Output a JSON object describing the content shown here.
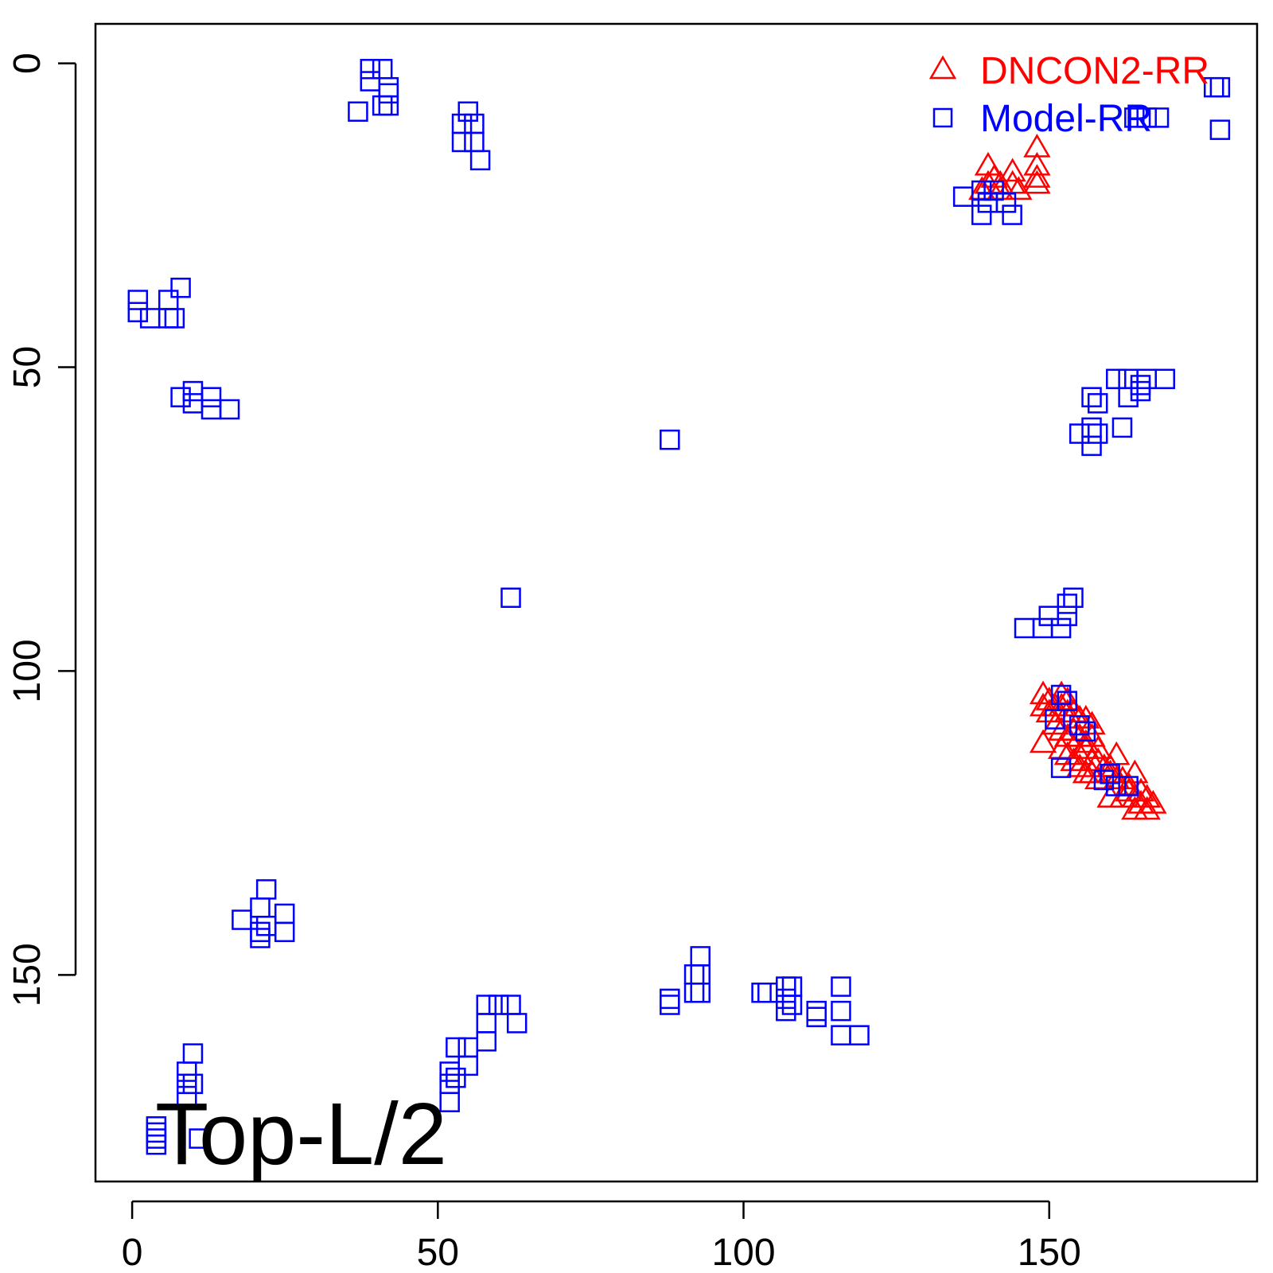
{
  "chart_data": {
    "type": "scatter",
    "title": "",
    "xlabel": "",
    "ylabel": "",
    "xlim": [
      -6,
      184
    ],
    "ylim": [
      -6.5,
      184
    ],
    "y_reversed": true,
    "x_ticks": [
      "0",
      "50",
      "100",
      "150"
    ],
    "y_ticks": [
      "0",
      "50",
      "100",
      "150"
    ],
    "annotation": "Top-L/2",
    "legend": {
      "placement": "top-right",
      "entries": [
        {
          "label": "DNCON2-RR",
          "color": "#ff0000",
          "marker": "triangle"
        },
        {
          "label": "Model-RR",
          "color": "#0000ff",
          "marker": "square"
        }
      ]
    },
    "series": [
      {
        "name": "DNCON2-RR",
        "color": "#ff0000",
        "marker": "triangle",
        "points": [
          [
            140,
            17
          ],
          [
            141,
            19
          ],
          [
            140,
            20
          ],
          [
            142,
            20
          ],
          [
            144,
            18
          ],
          [
            144,
            20
          ],
          [
            148,
            14
          ],
          [
            148,
            17
          ],
          [
            148,
            19
          ],
          [
            148,
            20
          ],
          [
            142,
            21
          ],
          [
            145,
            21
          ],
          [
            139,
            21
          ],
          [
            149,
            104
          ],
          [
            150,
            105
          ],
          [
            149,
            106
          ],
          [
            150,
            107
          ],
          [
            152,
            104
          ],
          [
            153,
            105
          ],
          [
            151,
            106
          ],
          [
            152,
            106
          ],
          [
            153,
            107
          ],
          [
            154,
            107
          ],
          [
            155,
            108
          ],
          [
            156,
            108
          ],
          [
            157,
            109
          ],
          [
            151,
            109
          ],
          [
            152,
            110
          ],
          [
            153,
            111
          ],
          [
            154,
            110
          ],
          [
            155,
            111
          ],
          [
            156,
            112
          ],
          [
            157,
            111
          ],
          [
            158,
            113
          ],
          [
            156,
            113
          ],
          [
            155,
            114
          ],
          [
            157,
            115
          ],
          [
            158,
            115
          ],
          [
            159,
            116
          ],
          [
            160,
            116
          ],
          [
            161,
            114
          ],
          [
            160,
            117
          ],
          [
            161,
            118
          ],
          [
            162,
            118
          ],
          [
            163,
            119
          ],
          [
            164,
            117
          ],
          [
            163,
            120
          ],
          [
            164,
            121
          ],
          [
            165,
            120
          ],
          [
            166,
            121
          ],
          [
            167,
            122
          ],
          [
            165,
            122
          ],
          [
            164,
            123
          ],
          [
            149,
            112
          ],
          [
            152,
            113
          ],
          [
            153,
            114
          ],
          [
            154,
            115
          ],
          [
            155,
            116
          ],
          [
            156,
            117
          ],
          [
            157,
            117
          ],
          [
            158,
            118
          ],
          [
            160,
            121
          ],
          [
            162,
            121
          ],
          [
            166,
            123
          ]
        ]
      },
      {
        "name": "Model-RR",
        "color": "#0000ff",
        "marker": "square",
        "points": [
          [
            39,
            1
          ],
          [
            41,
            1
          ],
          [
            39,
            3
          ],
          [
            42,
            4
          ],
          [
            42,
            5
          ],
          [
            37,
            8
          ],
          [
            42,
            7
          ],
          [
            41,
            7
          ],
          [
            55,
            8
          ],
          [
            54,
            10
          ],
          [
            56,
            10
          ],
          [
            54,
            13
          ],
          [
            56,
            13
          ],
          [
            57,
            16
          ],
          [
            177,
            4
          ],
          [
            178,
            4
          ],
          [
            164,
            9
          ],
          [
            166,
            9
          ],
          [
            168,
            9
          ],
          [
            178,
            11
          ],
          [
            136,
            22
          ],
          [
            139,
            21
          ],
          [
            141,
            21
          ],
          [
            140,
            23
          ],
          [
            143,
            23
          ],
          [
            139,
            25
          ],
          [
            144,
            25
          ],
          [
            1,
            39
          ],
          [
            1,
            41
          ],
          [
            3,
            42
          ],
          [
            6,
            39
          ],
          [
            6,
            42
          ],
          [
            8,
            37
          ],
          [
            7,
            42
          ],
          [
            8,
            55
          ],
          [
            10,
            54
          ],
          [
            10,
            56
          ],
          [
            13,
            55
          ],
          [
            13,
            57
          ],
          [
            16,
            57
          ],
          [
            88,
            62
          ],
          [
            157,
            55
          ],
          [
            158,
            56
          ],
          [
            161,
            52
          ],
          [
            163,
            52
          ],
          [
            163,
            55
          ],
          [
            166,
            52
          ],
          [
            169,
            52
          ],
          [
            165,
            54
          ],
          [
            157,
            60
          ],
          [
            155,
            61
          ],
          [
            158,
            61
          ],
          [
            157,
            63
          ],
          [
            162,
            60
          ],
          [
            165,
            53
          ],
          [
            62,
            88
          ],
          [
            146,
            93
          ],
          [
            149,
            93
          ],
          [
            150,
            91
          ],
          [
            152,
            93
          ],
          [
            153,
            89
          ],
          [
            154,
            88
          ],
          [
            153,
            91
          ],
          [
            152,
            104
          ],
          [
            153,
            105
          ],
          [
            151,
            108
          ],
          [
            155,
            109
          ],
          [
            156,
            110
          ],
          [
            152,
            116
          ],
          [
            159,
            118
          ],
          [
            160,
            117
          ],
          [
            161,
            119
          ],
          [
            163,
            119
          ],
          [
            21,
            139
          ],
          [
            22,
            136
          ],
          [
            18,
            141
          ],
          [
            21,
            143
          ],
          [
            22,
            142
          ],
          [
            25,
            140
          ],
          [
            25,
            143
          ],
          [
            21,
            144
          ],
          [
            93,
            147
          ],
          [
            92,
            150
          ],
          [
            93,
            150
          ],
          [
            93,
            153
          ],
          [
            92,
            153
          ],
          [
            88,
            154
          ],
          [
            88,
            155
          ],
          [
            103,
            153
          ],
          [
            104,
            153
          ],
          [
            107,
            152
          ],
          [
            108,
            152
          ],
          [
            107,
            154
          ],
          [
            108,
            155
          ],
          [
            107,
            156
          ],
          [
            112,
            156
          ],
          [
            112,
            157
          ],
          [
            116,
            152
          ],
          [
            116,
            156
          ],
          [
            119,
            160
          ],
          [
            116,
            160
          ],
          [
            58,
            155
          ],
          [
            60,
            155
          ],
          [
            62,
            155
          ],
          [
            58,
            158
          ],
          [
            63,
            158
          ],
          [
            58,
            161
          ],
          [
            55,
            162
          ],
          [
            53,
            162
          ],
          [
            55,
            165
          ],
          [
            53,
            167
          ],
          [
            52,
            166
          ],
          [
            52,
            168
          ],
          [
            52,
            171
          ],
          [
            10,
            163
          ],
          [
            9,
            166
          ],
          [
            9,
            168
          ],
          [
            10,
            168
          ],
          [
            9,
            170
          ],
          [
            4,
            175
          ],
          [
            4,
            176
          ],
          [
            4,
            177
          ],
          [
            4,
            178
          ],
          [
            11,
            177
          ]
        ]
      }
    ]
  }
}
